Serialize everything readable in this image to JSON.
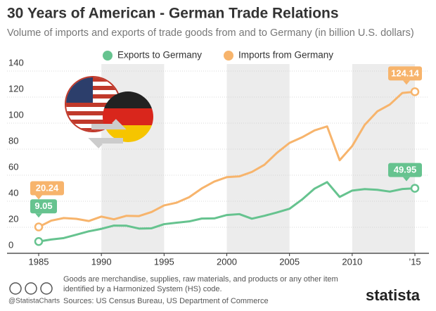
{
  "chart_data": {
    "type": "line",
    "title": "30 Years of American - German Trade Relations",
    "subtitle": "Volume of imports and exports of trade goods from and to Germany (in billion U.S. dollars)",
    "x": [
      1985,
      1986,
      1987,
      1988,
      1989,
      1990,
      1991,
      1992,
      1993,
      1994,
      1995,
      1996,
      1997,
      1998,
      1999,
      2000,
      2001,
      2002,
      2003,
      2004,
      2005,
      2006,
      2007,
      2008,
      2009,
      2010,
      2011,
      2012,
      2013,
      2014,
      2015
    ],
    "series": [
      {
        "name": "Exports to Germany",
        "color": "#66c38f",
        "values": [
          9.05,
          10.6,
          11.7,
          14.3,
          16.9,
          18.8,
          21.3,
          21.2,
          19.0,
          19.2,
          22.4,
          23.5,
          24.5,
          26.7,
          26.8,
          29.4,
          30.1,
          26.6,
          28.8,
          31.4,
          34.2,
          41.3,
          49.7,
          54.7,
          43.3,
          48.2,
          49.3,
          48.8,
          47.4,
          49.4,
          49.95
        ]
      },
      {
        "name": "Imports from Germany",
        "color": "#f7b46c",
        "values": [
          20.24,
          25.1,
          27.1,
          26.5,
          24.8,
          28.2,
          26.1,
          28.8,
          28.6,
          31.7,
          36.8,
          38.9,
          43.1,
          49.8,
          55.1,
          58.5,
          59.1,
          62.5,
          68.0,
          77.2,
          84.8,
          89.1,
          94.4,
          97.5,
          71.5,
          82.4,
          98.7,
          109.0,
          114.3,
          123.2,
          124.14
        ]
      }
    ],
    "xlim": [
      1985,
      2015
    ],
    "xticks": [
      1985,
      1990,
      1995,
      2000,
      2005,
      2010,
      {
        "value": 2015,
        "label": "’15"
      }
    ],
    "ylim": [
      0,
      140
    ],
    "yticks": [
      0,
      20,
      40,
      60,
      80,
      100,
      120,
      140
    ],
    "grid": true,
    "legend": "top",
    "footnote": [
      "Goods are merchandise, supplies, raw materials, and products or any other item",
      "identified by a Harmonized System (HS) code."
    ],
    "source": "Sources: US Census Bureau, US Department of Commerce",
    "handle": "@StatistaCharts",
    "brand": "statista"
  }
}
